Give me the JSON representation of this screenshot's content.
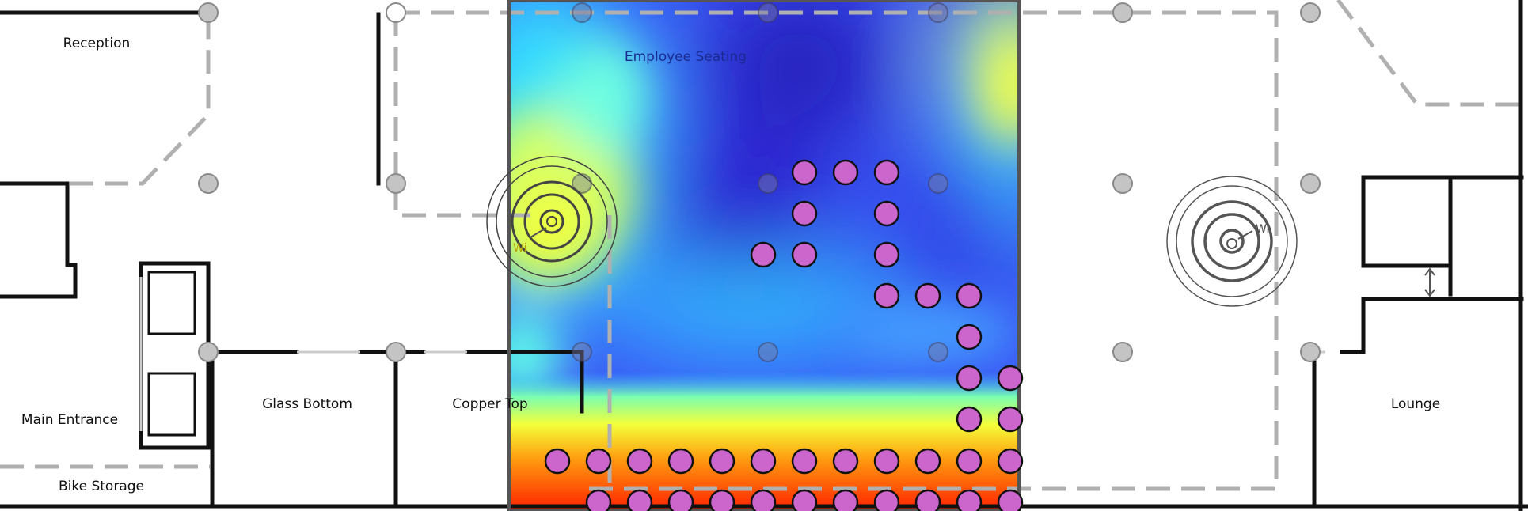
{
  "rooms": {
    "reception": "Reception",
    "employee_seating": "Employee Seating",
    "main_entrance": "Main Entrance",
    "glass_bottom": "Glass Bottom",
    "copper_top": "Copper Top",
    "bike_storage": "Bike Storage",
    "lounge": "Lounge"
  },
  "access_points": [
    {
      "id": "ap-left",
      "label": "Wi"
    },
    {
      "id": "ap-right",
      "label": "Wi"
    }
  ],
  "heatmap": {
    "scale": "jet",
    "low_color": "#1a1aff",
    "high_color": "#ff2200"
  },
  "colors": {
    "seat_fill": "#cc66cc",
    "seat_stroke": "#111111",
    "wall": "#111111",
    "dashed_line": "#b0b0b0",
    "column": "#c4c4c4"
  }
}
